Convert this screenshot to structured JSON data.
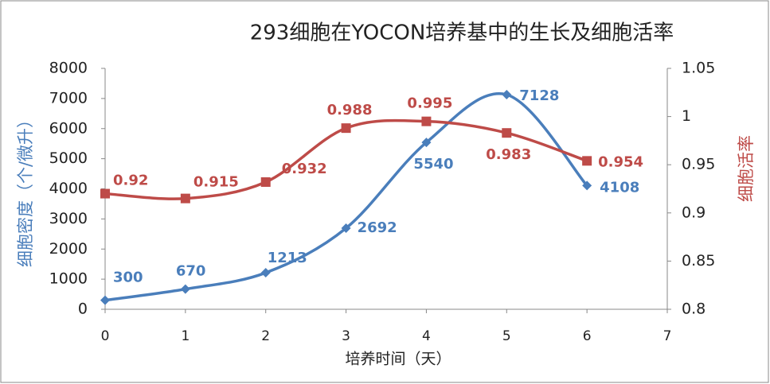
{
  "chart_data": {
    "type": "line",
    "title": "293细胞在YOCON培养基中的生长及细胞活率",
    "x_label": "培养时间（天）",
    "y_label": "细胞密度（个/微升）",
    "y2_label": "细胞活率",
    "x": [
      0,
      1,
      2,
      3,
      4,
      5,
      6
    ],
    "xlim": [
      0,
      7
    ],
    "xticks": [
      0,
      1,
      2,
      3,
      4,
      5,
      6,
      7
    ],
    "ylim": [
      0,
      8000
    ],
    "yticks": [
      0,
      1000,
      2000,
      3000,
      4000,
      5000,
      6000,
      7000,
      8000
    ],
    "y2lim": [
      0.8,
      1.05
    ],
    "y2ticks": [
      0.8,
      0.85,
      0.9,
      0.95,
      1,
      1.05
    ],
    "smooth": true,
    "grid": false,
    "series": [
      {
        "name": "细胞密度",
        "color": "#4a7ebb",
        "marker": "diamond",
        "values": [
          300,
          670,
          1213,
          2692,
          5540,
          7128,
          4108
        ]
      },
      {
        "name": "细胞活率",
        "color": "#be4b48",
        "marker": "square",
        "axis": "y2",
        "values": [
          0.92,
          0.915,
          0.932,
          0.988,
          0.995,
          0.983,
          0.954
        ]
      }
    ]
  }
}
